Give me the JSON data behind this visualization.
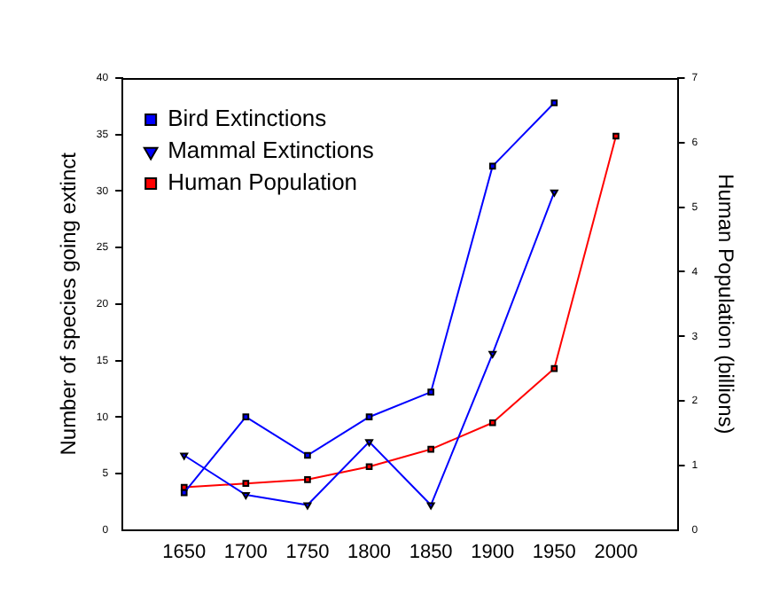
{
  "chart_data": {
    "type": "line",
    "ylabel": "Number of species going extinct",
    "y2label": "Human Population (billions)",
    "x": [
      1650,
      1700,
      1750,
      1800,
      1850,
      1900,
      1950,
      2000
    ],
    "xlim": [
      1600,
      2050
    ],
    "xticks": [
      1650,
      1700,
      1750,
      1800,
      1850,
      1900,
      1950,
      2000
    ],
    "ylim": [
      0,
      40
    ],
    "yticks": [
      0,
      5,
      10,
      15,
      20,
      25,
      30,
      35,
      40
    ],
    "y2lim": [
      0,
      7
    ],
    "y2ticks": [
      0,
      1,
      2,
      3,
      4,
      5,
      6,
      7
    ],
    "grid": false,
    "legend": "top left",
    "series": [
      {
        "name": "Bird Extinctions",
        "color": "#0000ff",
        "marker": "square",
        "values": [
          3.3,
          10,
          6.6,
          10,
          12.2,
          32.2,
          37.8,
          null
        ]
      },
      {
        "name": "Mammal Extinctions",
        "color": "#0000ff",
        "marker": "triangle",
        "values": [
          6.6,
          3.1,
          2.2,
          7.8,
          2.2,
          15.6,
          29.9,
          null
        ]
      },
      {
        "name": "Human Population",
        "color": "#ff0000",
        "marker": "square",
        "axis": "y2",
        "values": [
          0.66,
          0.72,
          0.78,
          0.98,
          1.25,
          1.66,
          2.5,
          6.1
        ]
      }
    ]
  }
}
